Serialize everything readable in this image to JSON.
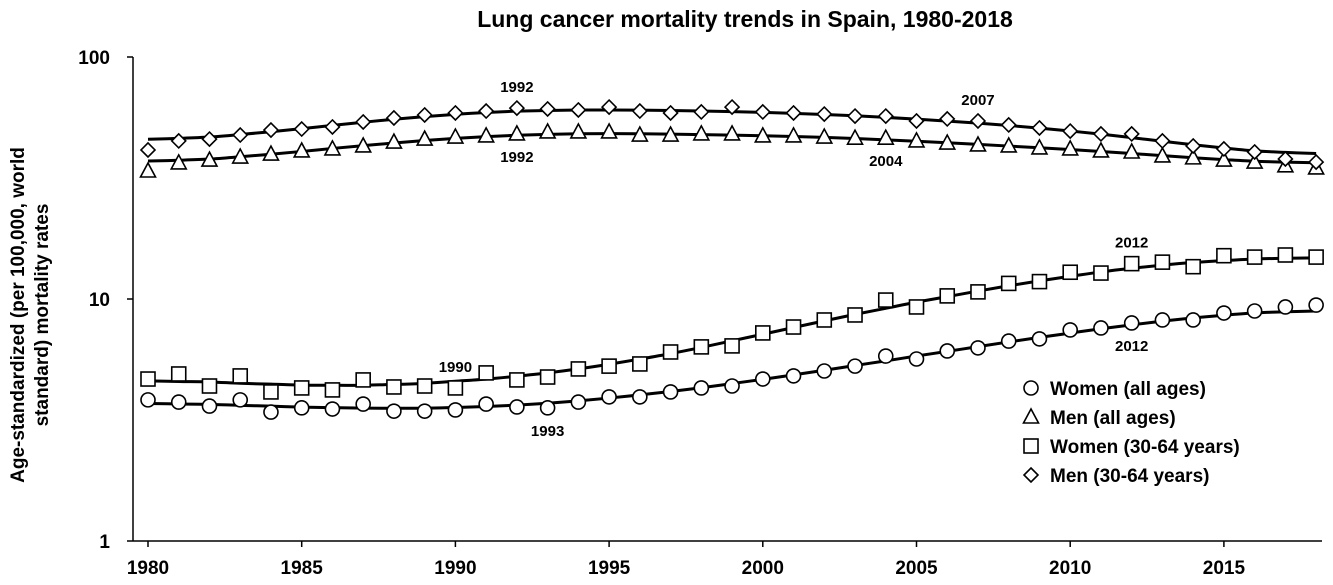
{
  "chart_data": {
    "type": "line",
    "title": "Lung cancer mortality trends in Spain, 1980-2018",
    "xlabel": "",
    "ylabel": "Age-standardized (per 100,000, world standard) mortality rates",
    "ylabel_lines": [
      "Age-standardized (per 100,000, world",
      "standard) mortality rates"
    ],
    "yscale": "log",
    "ylim": [
      1,
      100
    ],
    "xlim": [
      1980,
      2018
    ],
    "yticks": [
      "1",
      "10",
      "100"
    ],
    "ytick_values": [
      1,
      10,
      100
    ],
    "xticks": [
      "1980",
      "1985",
      "1990",
      "1995",
      "2000",
      "2005",
      "2010",
      "2015"
    ],
    "xtick_values": [
      1980,
      1985,
      1990,
      1995,
      2000,
      2005,
      2010,
      2015
    ],
    "grid": false,
    "legend_position": "bottom-right",
    "x": [
      1980,
      1981,
      1982,
      1983,
      1984,
      1985,
      1986,
      1987,
      1988,
      1989,
      1990,
      1991,
      1992,
      1993,
      1994,
      1995,
      1996,
      1997,
      1998,
      1999,
      2000,
      2001,
      2002,
      2003,
      2004,
      2005,
      2006,
      2007,
      2008,
      2009,
      2010,
      2011,
      2012,
      2013,
      2014,
      2015,
      2016,
      2017,
      2018
    ],
    "series": [
      {
        "name": "Women (all ages)",
        "marker": "circle",
        "values": [
          3.83,
          3.75,
          3.61,
          3.83,
          3.41,
          3.55,
          3.51,
          3.68,
          3.44,
          3.44,
          3.48,
          3.68,
          3.58,
          3.55,
          3.75,
          3.94,
          3.94,
          4.13,
          4.29,
          4.37,
          4.67,
          4.81,
          5.04,
          5.28,
          5.81,
          5.65,
          6.1,
          6.28,
          6.7,
          6.84,
          7.45,
          7.59,
          7.96,
          8.19,
          8.19,
          8.75,
          8.92,
          9.27,
          9.44
        ]
      },
      {
        "name": "Men (all ages)",
        "marker": "triangle",
        "values": [
          33.8,
          36.5,
          37.5,
          38.6,
          39.7,
          40.9,
          41.7,
          42.9,
          44.5,
          45.8,
          46.7,
          47.2,
          48.1,
          49.0,
          49.0,
          49.0,
          47.6,
          47.6,
          48.1,
          48.1,
          47.2,
          47.2,
          46.7,
          46.2,
          46.2,
          45.0,
          44.1,
          43.3,
          42.9,
          42.1,
          41.7,
          40.9,
          40.5,
          39.0,
          38.3,
          37.5,
          36.8,
          35.5,
          34.8
        ]
      },
      {
        "name": "Women (30-64 years)",
        "marker": "square",
        "values": [
          4.67,
          4.9,
          4.37,
          4.81,
          4.13,
          4.29,
          4.21,
          4.63,
          4.33,
          4.37,
          4.29,
          4.95,
          4.63,
          4.76,
          5.14,
          5.28,
          5.39,
          6.04,
          6.34,
          6.4,
          7.24,
          7.66,
          8.19,
          8.59,
          9.9,
          9.27,
          10.3,
          10.7,
          11.6,
          11.8,
          12.9,
          12.8,
          14.0,
          14.2,
          13.6,
          15.1,
          14.9,
          15.2,
          14.9
        ]
      },
      {
        "name": "Men (30-64 years)",
        "marker": "diamond",
        "values": [
          41.3,
          45.0,
          45.8,
          47.6,
          49.9,
          50.4,
          51.4,
          53.9,
          56.0,
          57.6,
          58.7,
          59.8,
          61.5,
          61.0,
          60.4,
          62.1,
          59.8,
          58.7,
          59.3,
          62.1,
          59.3,
          58.7,
          58.1,
          57.0,
          57.0,
          54.4,
          55.5,
          54.4,
          52.4,
          50.9,
          49.4,
          48.1,
          48.1,
          45.0,
          42.9,
          41.7,
          40.5,
          37.9,
          36.8
        ]
      }
    ],
    "annotations": [
      {
        "text": "1992",
        "series": "Men (30-64 years)",
        "x": 1992,
        "pos": "above"
      },
      {
        "text": "2007",
        "series": "Men (30-64 years)",
        "x": 2007,
        "pos": "above"
      },
      {
        "text": "1992",
        "series": "Men (all ages)",
        "x": 1992,
        "pos": "below"
      },
      {
        "text": "2004",
        "series": "Men (all ages)",
        "x": 2004,
        "pos": "below"
      },
      {
        "text": "2012",
        "series": "Women (30-64 years)",
        "x": 2012,
        "pos": "above"
      },
      {
        "text": "1990",
        "series": "Women (30-64 years)",
        "x": 1990,
        "pos": "above"
      },
      {
        "text": "2012",
        "series": "Women (all ages)",
        "x": 2012,
        "pos": "below"
      },
      {
        "text": "1993",
        "series": "Women (all ages)",
        "x": 1993,
        "pos": "below"
      }
    ]
  }
}
